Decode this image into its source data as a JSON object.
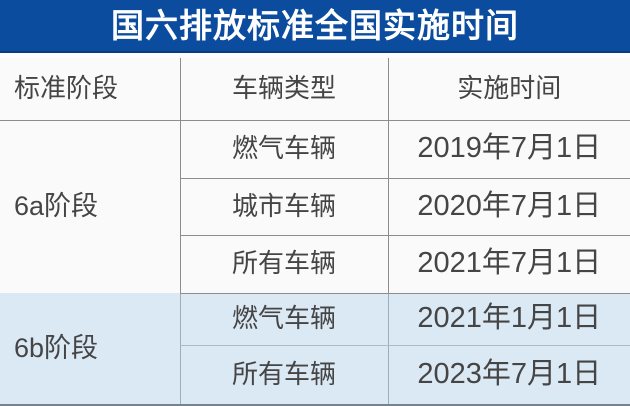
{
  "title_bar": {
    "title": "国六排放标准全国实施时间"
  },
  "colors": {
    "title_bar_bg": "#0b4c9e",
    "title_bar_edge": "#083c7c",
    "title_text": "#ffffff",
    "section_6a_bg": "#fbfafa",
    "section_6b_bg": "#dbe9f5",
    "grid_line": "#8d8d8d",
    "body_text": "#454545"
  },
  "chart_data": {
    "type": "table",
    "title": "国六排放标准全国实施时间",
    "columns": [
      "标准阶段",
      "车辆类型",
      "实施时间"
    ],
    "groups": [
      {
        "stage": "6a阶段",
        "rows": [
          {
            "vehicle": "燃气车辆",
            "date": "2019年7月1日"
          },
          {
            "vehicle": "城市车辆",
            "date": "2020年7月1日"
          },
          {
            "vehicle": "所有车辆",
            "date": "2021年7月1日"
          }
        ]
      },
      {
        "stage": "6b阶段",
        "rows": [
          {
            "vehicle": "燃气车辆",
            "date": "2021年1月1日"
          },
          {
            "vehicle": "所有车辆",
            "date": "2023年7月1日"
          }
        ]
      }
    ]
  }
}
